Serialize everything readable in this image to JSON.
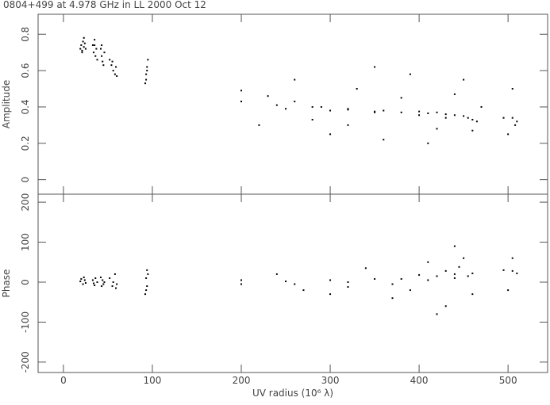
{
  "title": "0804+499 at 4.978 GHz in LL  2000 Oct 12",
  "chart_data": [
    {
      "type": "scatter",
      "ylabel": "Amplitude",
      "color": "#000000",
      "xlim": [
        -28.5,
        544.5
      ],
      "ylim": [
        -0.08,
        0.91
      ],
      "yticks": [
        {
          "value": 0,
          "label": "0"
        },
        0.2,
        0.4,
        0.6,
        0.8
      ],
      "x": [
        19,
        20,
        21,
        22,
        23,
        24,
        25,
        21,
        23,
        33,
        34,
        35,
        36,
        37,
        38,
        35,
        42,
        43,
        44,
        45,
        46,
        43,
        52,
        54,
        56,
        58,
        59,
        60,
        55,
        92,
        93,
        94,
        95,
        93,
        94,
        200,
        230,
        260,
        290,
        320,
        350,
        380,
        410,
        430,
        450,
        465,
        200,
        240,
        280,
        320,
        360,
        400,
        420,
        440,
        460,
        250,
        300,
        350,
        400,
        430,
        455,
        220,
        260,
        300,
        330,
        360,
        390,
        410,
        440,
        460,
        350,
        280,
        420,
        380,
        320,
        450,
        470,
        495,
        505,
        508,
        510,
        500,
        505
      ],
      "values": [
        0.72,
        0.74,
        0.71,
        0.76,
        0.73,
        0.75,
        0.72,
        0.7,
        0.78,
        0.74,
        0.7,
        0.77,
        0.68,
        0.72,
        0.66,
        0.74,
        0.72,
        0.68,
        0.65,
        0.63,
        0.7,
        0.74,
        0.66,
        0.63,
        0.6,
        0.58,
        0.62,
        0.57,
        0.65,
        0.53,
        0.58,
        0.62,
        0.66,
        0.55,
        0.6,
        0.49,
        0.46,
        0.43,
        0.4,
        0.385,
        0.375,
        0.37,
        0.365,
        0.36,
        0.35,
        0.32,
        0.43,
        0.41,
        0.4,
        0.39,
        0.38,
        0.375,
        0.37,
        0.355,
        0.33,
        0.39,
        0.38,
        0.37,
        0.355,
        0.34,
        0.34,
        0.3,
        0.55,
        0.25,
        0.5,
        0.22,
        0.58,
        0.2,
        0.47,
        0.27,
        0.62,
        0.33,
        0.28,
        0.45,
        0.3,
        0.55,
        0.4,
        0.34,
        0.34,
        0.3,
        0.32,
        0.25,
        0.5
      ]
    },
    {
      "type": "scatter",
      "ylabel": "Phase",
      "xlabel": "UV radius  (10⁶ λ)",
      "color": "#000000",
      "xlim": [
        -28.5,
        544.5
      ],
      "ylim": [
        -226,
        220
      ],
      "xticks": [
        0,
        100,
        200,
        300,
        400,
        500
      ],
      "yticks": [
        -200,
        -100,
        0,
        100,
        200
      ],
      "x": [
        19,
        20,
        22,
        24,
        25,
        23,
        33,
        35,
        36,
        38,
        34,
        42,
        43,
        44,
        46,
        45,
        52,
        55,
        58,
        60,
        56,
        59,
        92,
        93,
        94,
        95,
        93,
        94,
        200,
        250,
        300,
        350,
        400,
        430,
        445,
        200,
        260,
        320,
        380,
        420,
        440,
        460,
        270,
        320,
        370,
        410,
        440,
        455,
        240,
        300,
        340,
        370,
        410,
        430,
        450,
        460,
        390,
        440,
        420,
        495,
        505,
        510,
        500,
        505
      ],
      "values": [
        2,
        8,
        -5,
        5,
        -2,
        12,
        5,
        -8,
        10,
        0,
        -3,
        12,
        -10,
        5,
        0,
        -5,
        10,
        -10,
        20,
        -5,
        0,
        -15,
        -30,
        10,
        -10,
        20,
        -20,
        30,
        5,
        2,
        5,
        8,
        18,
        28,
        38,
        -5,
        -5,
        0,
        8,
        15,
        20,
        22,
        -20,
        -12,
        -5,
        5,
        10,
        15,
        20,
        -30,
        35,
        -40,
        50,
        -60,
        60,
        -30,
        -20,
        90,
        -80,
        30,
        28,
        22,
        -20,
        60
      ]
    }
  ]
}
